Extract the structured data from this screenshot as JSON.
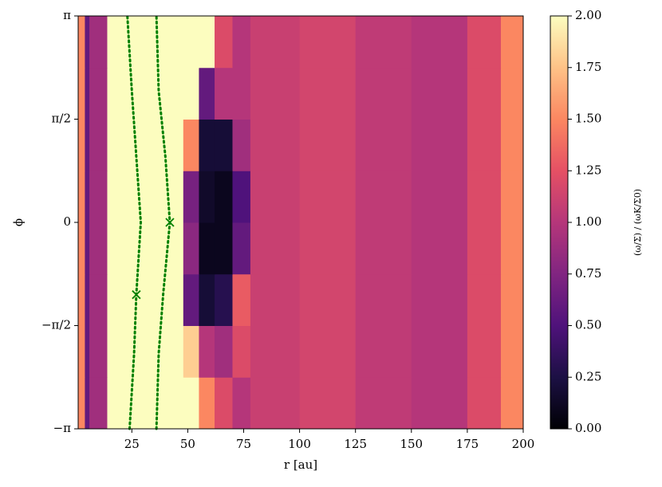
{
  "chart_data": {
    "type": "heatmap",
    "xlabel": "r [au]",
    "ylabel": "ϕ",
    "colorbar_label": "(ω/Σ) / (ωK/Σ0)",
    "xlim": [
      1,
      200
    ],
    "xticks": [
      25,
      50,
      75,
      100,
      125,
      150,
      175,
      200
    ],
    "ylim": [
      -3.1416,
      3.1416
    ],
    "yticks": [
      {
        "value": -3.1416,
        "label": "−π"
      },
      {
        "value": -1.5708,
        "label": "−π/2"
      },
      {
        "value": 0,
        "label": "0"
      },
      {
        "value": 1.5708,
        "label": "π/2"
      },
      {
        "value": 3.1416,
        "label": "π"
      }
    ],
    "x_edges": [
      1,
      4,
      6,
      14,
      40,
      48,
      55,
      62,
      70,
      78,
      100,
      125,
      150,
      175,
      190,
      200
    ],
    "y_edges": [
      -3.1416,
      -2.3562,
      -1.5708,
      -0.7854,
      0,
      0.7854,
      1.5708,
      2.3562,
      3.1416
    ],
    "z": [
      [
        1.5,
        0.6,
        0.9,
        2,
        2,
        2,
        1.5,
        1.2,
        1.0,
        1.1,
        1.15,
        1.05,
        1.0,
        1.2,
        1.5
      ],
      [
        1.5,
        0.6,
        0.9,
        2,
        2,
        1.8,
        1.0,
        0.9,
        1.2,
        1.1,
        1.15,
        1.05,
        1.0,
        1.2,
        1.5
      ],
      [
        1.5,
        0.6,
        0.9,
        2,
        2,
        0.6,
        0.2,
        0.3,
        1.3,
        1.1,
        1.15,
        1.05,
        1.0,
        1.2,
        1.5
      ],
      [
        1.5,
        0.6,
        0.9,
        2,
        2,
        0.8,
        0.1,
        0.1,
        0.6,
        1.1,
        1.15,
        1.05,
        1.0,
        1.2,
        1.5
      ],
      [
        1.5,
        0.6,
        0.9,
        2,
        2,
        0.7,
        0.15,
        0.1,
        0.5,
        1.1,
        1.15,
        1.05,
        1.0,
        1.2,
        1.5
      ],
      [
        1.5,
        0.6,
        0.9,
        2,
        2,
        1.5,
        0.2,
        0.2,
        0.9,
        1.1,
        1.15,
        1.05,
        1.0,
        1.2,
        1.5
      ],
      [
        1.5,
        0.6,
        0.9,
        2,
        2,
        2,
        0.6,
        1.0,
        1.0,
        1.1,
        1.15,
        1.05,
        1.0,
        1.2,
        1.5
      ],
      [
        1.5,
        0.6,
        0.9,
        2,
        2,
        2,
        2,
        1.2,
        1.0,
        1.1,
        1.15,
        1.05,
        1.0,
        1.2,
        1.5
      ]
    ],
    "colormap": [
      "#000004",
      "#1c1044",
      "#4f127b",
      "#812581",
      "#b5367a",
      "#e55064",
      "#fb8761",
      "#fec287",
      "#fcfdbf"
    ],
    "clim": [
      0,
      2
    ],
    "cticks": [
      {
        "value": 0,
        "label": "0.00"
      },
      {
        "value": 0.25,
        "label": "0.25"
      },
      {
        "value": 0.5,
        "label": "0.50"
      },
      {
        "value": 0.75,
        "label": "0.75"
      },
      {
        "value": 1,
        "label": "1.00"
      },
      {
        "value": 1.25,
        "label": "1.25"
      },
      {
        "value": 1.5,
        "label": "1.50"
      },
      {
        "value": 1.75,
        "label": "1.75"
      },
      {
        "value": 2,
        "label": "2.00"
      }
    ],
    "lines": [
      {
        "color": "#008000",
        "x": [
          24,
          26,
          27,
          29,
          27,
          25,
          23
        ],
        "y": [
          -3.1416,
          -2,
          -1.1,
          0,
          1,
          2,
          3.1416
        ]
      },
      {
        "color": "#008000",
        "x": [
          36,
          37,
          39,
          42,
          40,
          37,
          36
        ],
        "y": [
          -3.1416,
          -2,
          -1.1,
          0,
          1,
          2,
          3.1416
        ]
      }
    ],
    "markers": {
      "color": "#008000",
      "x": [
        42,
        27
      ],
      "y": [
        0,
        -1.1
      ]
    }
  }
}
